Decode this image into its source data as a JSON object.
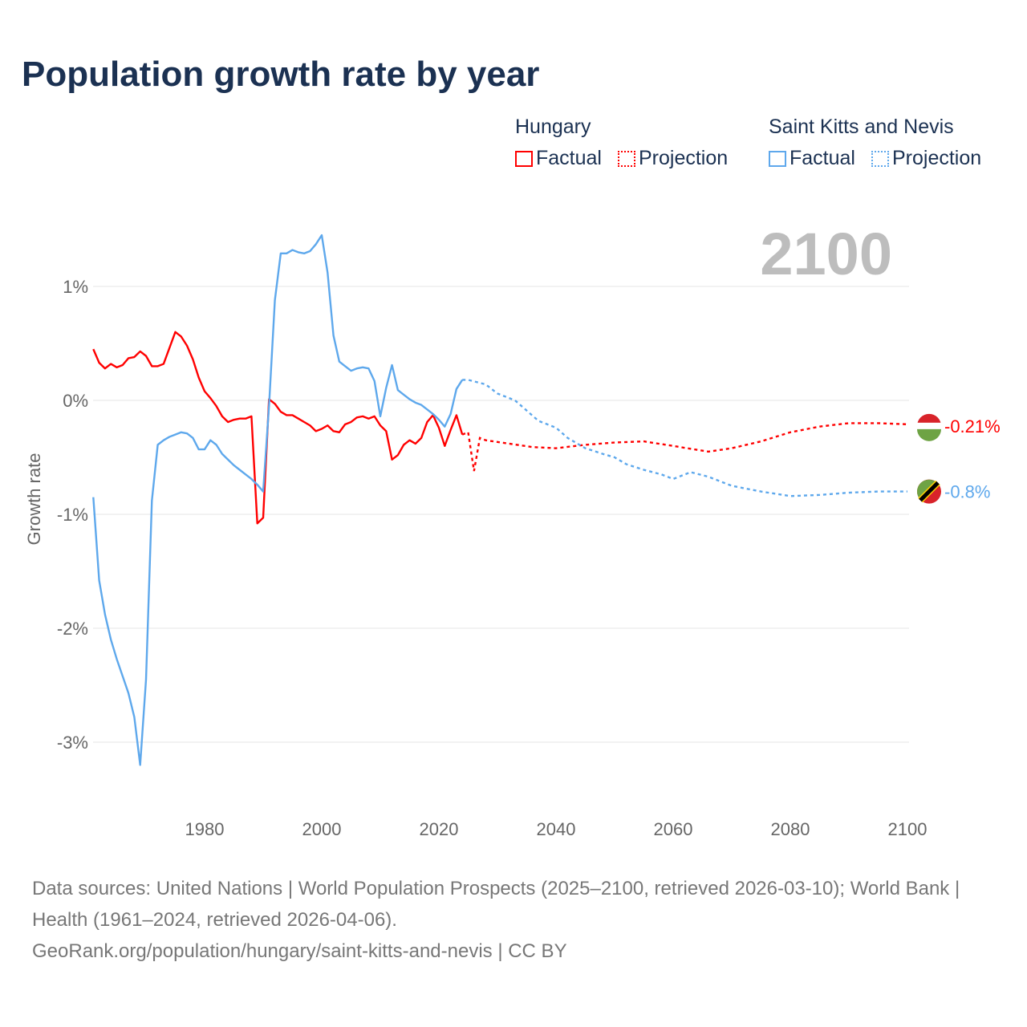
{
  "title": "Population growth rate by year",
  "legend": [
    {
      "country": "Hungary",
      "factual": "Factual",
      "projection": "Projection",
      "color": "#ff0000"
    },
    {
      "country": "Saint Kitts and Nevis",
      "factual": "Factual",
      "projection": "Projection",
      "color": "#5ea8ec"
    }
  ],
  "year_display": "2100",
  "footer": {
    "sources": "Data sources: United Nations | World Population Prospects (2025–2100, retrieved 2026-03-10); World Bank | Health (1961–2024, retrieved 2026-04-06).",
    "credit": "GeoRank.org/population/hungary/saint-kitts-and-nevis | CC BY"
  },
  "chart_data": {
    "type": "line",
    "title": "Population growth rate by year",
    "xlabel": "",
    "ylabel": "Growth rate",
    "xlim": [
      1961,
      2100
    ],
    "ylim": [
      -3.5,
      1.8
    ],
    "x_ticks": [
      1980,
      2000,
      2020,
      2040,
      2060,
      2080,
      2100
    ],
    "y_ticks": [
      {
        "v": 1,
        "label": "1%"
      },
      {
        "v": 0,
        "label": "0%"
      },
      {
        "v": -1,
        "label": "-1%"
      },
      {
        "v": -2,
        "label": "-2%"
      },
      {
        "v": -3,
        "label": "-3%"
      }
    ],
    "grid": true,
    "series": [
      {
        "name": "Hungary",
        "color": "#ff0000",
        "end_label": "-0.21%",
        "factual": {
          "start": 1961,
          "values": [
            0.45,
            0.33,
            0.28,
            0.32,
            0.29,
            0.31,
            0.37,
            0.38,
            0.43,
            0.39,
            0.3,
            0.3,
            0.32,
            0.46,
            0.6,
            0.56,
            0.48,
            0.36,
            0.2,
            0.08,
            0.02,
            -0.05,
            -0.14,
            -0.19,
            -0.17,
            -0.16,
            -0.16,
            -0.14,
            -1.08,
            -1.03,
            0.01,
            -0.03,
            -0.1,
            -0.13,
            -0.13,
            -0.16,
            -0.19,
            -0.22,
            -0.27,
            -0.25,
            -0.22,
            -0.27,
            -0.28,
            -0.21,
            -0.19,
            -0.15,
            -0.14,
            -0.16,
            -0.14,
            -0.22,
            -0.27,
            -0.52,
            -0.48,
            -0.39,
            -0.35,
            -0.38,
            -0.33,
            -0.19,
            -0.13,
            -0.24,
            -0.4,
            -0.26,
            -0.13,
            -0.3
          ]
        },
        "projection": {
          "x": [
            2024,
            2025,
            2026,
            2027,
            2028,
            2032,
            2036,
            2040,
            2045,
            2050,
            2055,
            2060,
            2066,
            2070,
            2075,
            2080,
            2085,
            2090,
            2095,
            2100
          ],
          "values": [
            -0.3,
            -0.28,
            -0.62,
            -0.33,
            -0.35,
            -0.38,
            -0.41,
            -0.42,
            -0.39,
            -0.37,
            -0.36,
            -0.4,
            -0.45,
            -0.42,
            -0.36,
            -0.28,
            -0.23,
            -0.2,
            -0.2,
            -0.21
          ]
        }
      },
      {
        "name": "Saint Kitts and Nevis",
        "color": "#5ea8ec",
        "end_label": "-0.8%",
        "factual": {
          "start": 1961,
          "values": [
            -0.85,
            -1.58,
            -1.88,
            -2.1,
            -2.27,
            -2.42,
            -2.57,
            -2.78,
            -3.2,
            -2.45,
            -0.88,
            -0.39,
            -0.35,
            -0.32,
            -0.3,
            -0.28,
            -0.29,
            -0.33,
            -0.43,
            -0.43,
            -0.35,
            -0.39,
            -0.47,
            -0.52,
            -0.57,
            -0.61,
            -0.65,
            -0.69,
            -0.74,
            -0.8,
            -0.05,
            0.88,
            1.29,
            1.29,
            1.32,
            1.3,
            1.29,
            1.31,
            1.37,
            1.45,
            1.12,
            0.57,
            0.34,
            0.3,
            0.26,
            0.28,
            0.29,
            0.28,
            0.17,
            -0.14,
            0.11,
            0.31,
            0.09,
            0.05,
            0.01,
            -0.02,
            -0.04,
            -0.08,
            -0.12,
            -0.17,
            -0.23,
            -0.12,
            0.1,
            0.18
          ]
        },
        "projection": {
          "x": [
            2024,
            2025,
            2028,
            2030,
            2033,
            2035,
            2037,
            2040,
            2042,
            2045,
            2048,
            2050,
            2052,
            2055,
            2058,
            2060,
            2063,
            2066,
            2070,
            2075,
            2080,
            2085,
            2090,
            2095,
            2100
          ],
          "values": [
            0.18,
            0.18,
            0.14,
            0.06,
            0.0,
            -0.09,
            -0.18,
            -0.24,
            -0.33,
            -0.42,
            -0.47,
            -0.5,
            -0.56,
            -0.61,
            -0.65,
            -0.69,
            -0.63,
            -0.67,
            -0.75,
            -0.8,
            -0.84,
            -0.83,
            -0.81,
            -0.8,
            -0.8
          ]
        }
      }
    ]
  }
}
